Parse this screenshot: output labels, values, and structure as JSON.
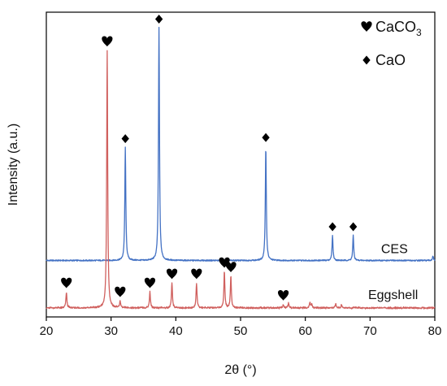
{
  "chart_data": {
    "type": "line",
    "xlabel": "2θ (°)",
    "ylabel": "Intensity (a.u.)",
    "xlim": [
      20,
      80
    ],
    "xticks": [
      20,
      30,
      40,
      50,
      60,
      70,
      80
    ],
    "yticks": "none",
    "grid": false,
    "legend": {
      "placement": "top-right",
      "entries": [
        {
          "marker": "heart",
          "label": "CaCO",
          "subscript": "3"
        },
        {
          "marker": "diamond",
          "label": "CaO"
        }
      ]
    },
    "series": [
      {
        "name": "CES",
        "color": "#4472c4",
        "baseline": 10,
        "peaks": [
          {
            "x": 32.2,
            "y": 50,
            "marker": "diamond"
          },
          {
            "x": 37.4,
            "y": 103,
            "marker": "diamond"
          },
          {
            "x": 53.9,
            "y": 50.5,
            "marker": "diamond"
          },
          {
            "x": 64.2,
            "y": 11,
            "marker": "diamond"
          },
          {
            "x": 67.4,
            "y": 11,
            "marker": "diamond"
          },
          {
            "x": 79.7,
            "y": 2,
            "marker": "none"
          }
        ]
      },
      {
        "name": "Eggshell",
        "color": "#d0605e",
        "baseline": -11,
        "peaks": [
          {
            "x": 23.1,
            "y": 7,
            "marker": "heart"
          },
          {
            "x": 29.4,
            "y": 114,
            "marker": "heart"
          },
          {
            "x": 31.4,
            "y": 3,
            "marker": "heart"
          },
          {
            "x": 36.0,
            "y": 7,
            "marker": "heart"
          },
          {
            "x": 39.4,
            "y": 11,
            "marker": "heart"
          },
          {
            "x": 43.2,
            "y": 11,
            "marker": "heart"
          },
          {
            "x": 47.5,
            "y": 16,
            "marker": "heart"
          },
          {
            "x": 48.5,
            "y": 14,
            "marker": "heart"
          },
          {
            "x": 56.6,
            "y": 1.5,
            "marker": "heart"
          },
          {
            "x": 57.4,
            "y": 2,
            "marker": "none"
          },
          {
            "x": 60.7,
            "y": 2.5,
            "marker": "none"
          },
          {
            "x": 61.0,
            "y": 1.5,
            "marker": "none"
          },
          {
            "x": 64.7,
            "y": 2,
            "marker": "none"
          },
          {
            "x": 65.6,
            "y": 1.5,
            "marker": "none"
          }
        ]
      }
    ]
  }
}
